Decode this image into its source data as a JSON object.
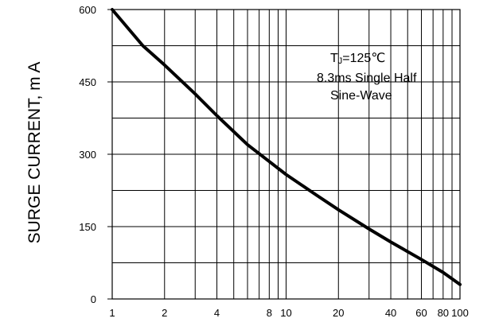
{
  "chart_data": {
    "type": "line",
    "title": "",
    "xlabel": "",
    "ylabel": "SURGE CURRENT, m A",
    "x_scale": "log",
    "xlim": [
      1,
      100
    ],
    "ylim": [
      0,
      600
    ],
    "grid": true,
    "x_ticks": [
      1,
      2,
      4,
      8,
      10,
      20,
      40,
      60,
      80,
      100
    ],
    "x_tick_labels": [
      "1",
      "2",
      "4",
      "8",
      "10",
      "20",
      "40",
      "60",
      "80",
      "100"
    ],
    "y_ticks": [
      0,
      150,
      300,
      450,
      600
    ],
    "y_tick_labels": [
      "0",
      "150",
      "300",
      "450",
      "600"
    ],
    "annotation_lines": [
      "TJ=125℃",
      "8.3ms Single Half",
      "Sine-Wave"
    ],
    "annotation_parts": {
      "t": "T",
      "sub": "J",
      "rest": "=125℃"
    },
    "series": [
      {
        "x": [
          1,
          1.5,
          2,
          3,
          4,
          6,
          8,
          10,
          15,
          20,
          30,
          40,
          60,
          80,
          100
        ],
        "y": [
          600,
          525,
          485,
          425,
          380,
          320,
          285,
          258,
          215,
          185,
          145,
          118,
          82,
          55,
          30
        ]
      }
    ]
  }
}
